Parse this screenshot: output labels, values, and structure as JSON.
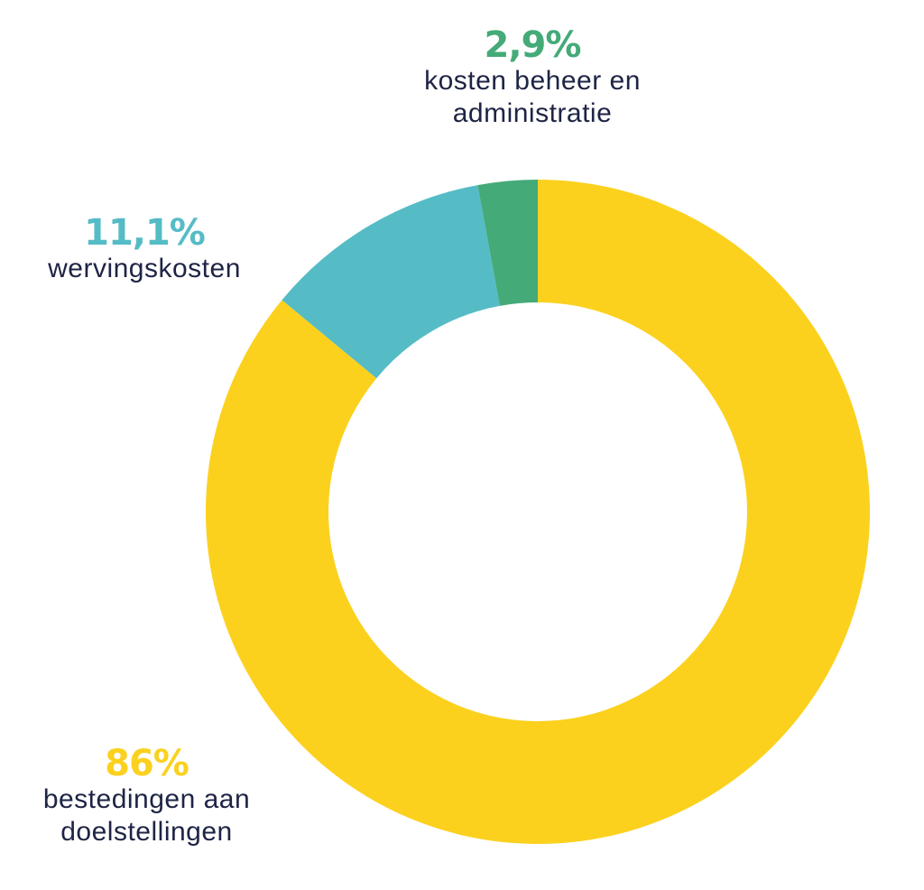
{
  "chart_data": {
    "type": "pie",
    "donut": true,
    "slices": [
      {
        "label": "bestedingen aan doelstellingen",
        "pct_text": "86%",
        "value": 86.0,
        "color": "#fbd11e"
      },
      {
        "label": "wervingskosten",
        "pct_text": "11,1%",
        "value": 11.1,
        "color": "#55bcc6"
      },
      {
        "label": "kosten beheer en administratie",
        "pct_text": "2,9%",
        "value": 2.9,
        "color": "#44aa78"
      }
    ],
    "text_color": "#1e2445"
  }
}
